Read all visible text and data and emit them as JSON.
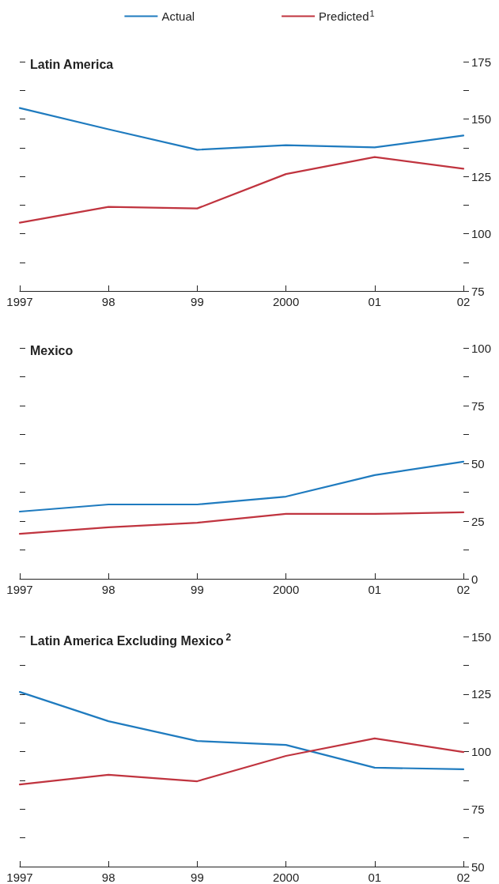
{
  "chart_data": [
    {
      "type": "line",
      "title": "Latin America",
      "legend": "top",
      "grid": false,
      "marker": "none",
      "line_style": "solid",
      "categories": [
        "1997",
        "98",
        "99",
        "2000",
        "01",
        "02"
      ],
      "ylim": [
        75,
        175
      ],
      "yticks": [
        75,
        {
          "value": 87.5,
          "label": null
        },
        100,
        {
          "value": 112.5,
          "label": null
        },
        125,
        {
          "value": 137.5,
          "label": null
        },
        150,
        {
          "value": 162.5,
          "label": null
        },
        175
      ],
      "series": [
        {
          "name": "Actual",
          "color": "#1f7bbf",
          "values": [
            154.8,
            145.5,
            136.6,
            138.6,
            137.6,
            142.8
          ]
        },
        {
          "name": "Predicted$^{1}$",
          "color": "#c0343f",
          "values": [
            104.8,
            111.7,
            111,
            126,
            133.4,
            128.3
          ]
        }
      ]
    },
    {
      "type": "line",
      "title": "Mexico",
      "grid": false,
      "marker": "none",
      "line_style": "solid",
      "categories": [
        "1997",
        "98",
        "99",
        "2000",
        "01",
        "02"
      ],
      "ylim": [
        0,
        100
      ],
      "yticks": [
        0,
        {
          "value": 12.5,
          "label": null
        },
        25,
        {
          "value": 37.5,
          "label": null
        },
        50,
        {
          "value": 62.5,
          "label": null
        },
        75,
        {
          "value": 87.5,
          "label": null
        },
        100
      ],
      "series": [
        {
          "color": "#1f7bbf",
          "values": [
            29.1,
            32.2,
            32.2,
            35.6,
            44.9,
            50.7
          ]
        },
        {
          "color": "#c0343f",
          "values": [
            19.5,
            22.3,
            24.3,
            28.1,
            28.1,
            28.8
          ]
        }
      ]
    },
    {
      "type": "line",
      "title": "Latin America Excluding Mexico$^{2}$",
      "grid": false,
      "marker": "none",
      "line_style": "solid",
      "categories": [
        "1997",
        "98",
        "99",
        "2000",
        "01",
        "02"
      ],
      "ylim": [
        50,
        150
      ],
      "yticks": [
        50,
        {
          "value": 62.5,
          "label": null
        },
        75,
        {
          "value": 87.5,
          "label": null
        },
        100,
        {
          "value": 112.5,
          "label": null
        },
        125,
        {
          "value": 137.5,
          "label": null
        },
        150
      ],
      "series": [
        {
          "color": "#1f7bbf",
          "values": [
            125.9,
            113.2,
            104.6,
            102.9,
            93,
            92.3
          ]
        },
        {
          "color": "#c0343f",
          "values": [
            85.7,
            89.9,
            87.1,
            98.1,
            105.7,
            99.8
          ]
        }
      ]
    }
  ]
}
